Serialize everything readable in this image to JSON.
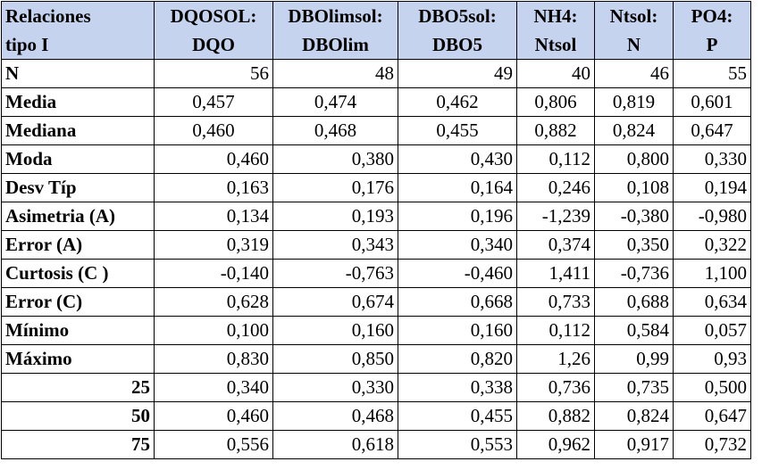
{
  "header": {
    "row1": [
      "Relaciones",
      "DQOSOL:",
      "DBOlimsol:",
      "DBO5sol:",
      "NH4:",
      "Ntsol:",
      "PO4:"
    ],
    "row2": [
      "tipo I",
      "DQO",
      "DBOlim",
      "DBO5",
      "Ntsol",
      "N",
      "P"
    ]
  },
  "rows": [
    {
      "label": "N",
      "align": "left",
      "values": [
        "56",
        "48",
        "49",
        "40",
        "46",
        "55"
      ],
      "centered": false
    },
    {
      "label": "Media",
      "align": "left",
      "values": [
        "0,457",
        "0,474",
        "0,462",
        "0,806",
        "0,819",
        "0,601"
      ],
      "centered": true
    },
    {
      "label": "Mediana",
      "align": "left",
      "values": [
        "0,460",
        "0,468",
        "0,455",
        "0,882",
        "0,824",
        "0,647"
      ],
      "centered": true
    },
    {
      "label": "Moda",
      "align": "left",
      "values": [
        "0,460",
        "0,380",
        "0,430",
        "0,112",
        "0,800",
        "0,330"
      ],
      "centered": false
    },
    {
      "label": "Desv Típ",
      "align": "left",
      "values": [
        "0,163",
        "0,176",
        "0,164",
        "0,246",
        "0,108",
        "0,194"
      ],
      "centered": false
    },
    {
      "label": "Asimetria (A)",
      "align": "left",
      "values": [
        "0,134",
        "0,193",
        "0,196",
        "-1,239",
        "-0,380",
        "-0,980"
      ],
      "centered": false
    },
    {
      "label": "Error (A)",
      "align": "left",
      "values": [
        "0,319",
        "0,343",
        "0,340",
        "0,374",
        "0,350",
        "0,322"
      ],
      "centered": false
    },
    {
      "label": "Curtosis (C )",
      "align": "left",
      "values": [
        "-0,140",
        "-0,763",
        "-0,460",
        "1,411",
        "-0,736",
        "1,100"
      ],
      "centered": false
    },
    {
      "label": "Error (C)",
      "align": "left",
      "values": [
        "0,628",
        "0,674",
        "0,668",
        "0,733",
        "0,688",
        "0,634"
      ],
      "centered": false
    },
    {
      "label": "Mínimo",
      "align": "left",
      "values": [
        "0,100",
        "0,160",
        "0,160",
        "0,112",
        "0,584",
        "0,057"
      ],
      "centered": false
    },
    {
      "label": "Máximo",
      "align": "left",
      "values": [
        "0,830",
        "0,850",
        "0,820",
        "1,26",
        "0,99",
        "0,93"
      ],
      "centered": false
    },
    {
      "label": "25",
      "align": "right",
      "values": [
        "0,340",
        "0,330",
        "0,338",
        "0,736",
        "0,735",
        "0,500"
      ],
      "centered": false
    },
    {
      "label": "50",
      "align": "right",
      "values": [
        "0,460",
        "0,468",
        "0,455",
        "0,882",
        "0,824",
        "0,647"
      ],
      "centered": false
    },
    {
      "label": "75",
      "align": "right",
      "values": [
        "0,556",
        "0,618",
        "0,553",
        "0,962",
        "0,917",
        "0,732"
      ],
      "centered": false
    }
  ],
  "colors": {
    "header_bg": "#c5d3ee",
    "border": "#000000"
  }
}
